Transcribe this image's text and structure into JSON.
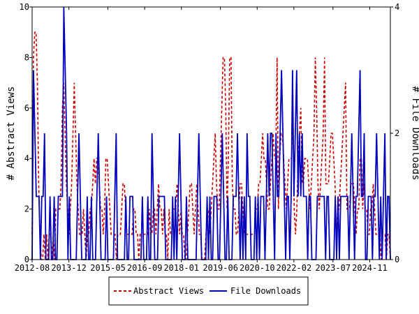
{
  "chart_data": {
    "type": "line",
    "x_ticks": [
      "2012-08",
      "2013-12",
      "2015-05",
      "2016-09",
      "2018-01",
      "2019-06",
      "2020-10",
      "2022-02",
      "2023-07",
      "2024-11"
    ],
    "x_range": [
      "2012-08",
      "2025-08"
    ],
    "y_left": {
      "label": "# Abstract Views",
      "range": [
        0,
        10
      ],
      "ticks": [
        "0",
        "2",
        "4",
        "6",
        "8",
        "10"
      ]
    },
    "y_right": {
      "label": "# File Downloads",
      "range": [
        0,
        4
      ],
      "ticks": [
        "0",
        "2",
        "4"
      ]
    },
    "grid": false,
    "legend_position": "bottom-center",
    "series": [
      {
        "name": "Abstract Views",
        "axis": "left",
        "color": "#cc0000",
        "style": "dashed",
        "values": [
          1,
          8,
          9,
          9,
          7,
          3,
          1,
          0,
          0,
          1,
          0,
          1,
          0,
          1,
          1,
          0,
          1,
          0,
          2,
          2,
          2,
          2,
          3,
          6,
          7,
          5,
          3,
          2,
          1,
          2,
          3,
          5,
          7,
          5,
          3,
          2,
          1,
          1,
          1,
          2,
          1,
          0,
          1,
          1,
          2,
          2,
          3,
          4,
          3,
          4,
          4,
          3,
          2,
          2,
          1,
          2,
          4,
          4,
          3,
          2,
          1,
          1,
          1,
          1,
          0,
          1,
          1,
          1,
          2,
          3,
          3,
          2,
          1,
          1,
          1,
          1,
          1,
          2,
          2,
          1,
          1,
          0,
          1,
          1,
          1,
          1,
          1,
          1,
          1,
          2,
          1,
          1,
          2,
          2,
          1,
          2,
          3,
          2,
          2,
          1,
          2,
          1,
          1,
          0,
          2,
          1,
          1,
          2,
          2,
          2,
          3,
          2,
          1,
          2,
          1,
          1,
          0,
          0,
          1,
          2,
          3,
          3,
          2,
          1,
          2,
          3,
          2,
          1,
          1,
          0,
          0,
          0,
          1,
          2,
          2,
          1,
          2,
          3,
          4,
          5,
          3,
          2,
          2,
          4,
          6,
          8,
          8,
          6,
          2,
          4,
          8,
          8,
          3,
          2,
          2,
          1,
          1,
          2,
          3,
          3,
          2,
          1,
          1,
          1,
          1,
          1,
          1,
          1,
          1,
          1,
          2,
          2,
          3,
          3,
          4,
          5,
          4,
          4,
          3,
          2,
          2,
          3,
          4,
          5,
          4,
          4,
          8,
          2,
          4,
          5,
          5,
          4,
          3,
          2,
          3,
          4,
          4,
          4,
          6,
          2,
          1,
          2,
          4,
          5,
          6,
          3,
          3,
          4,
          4,
          4,
          3,
          2,
          3,
          4,
          5,
          8,
          6,
          3,
          2,
          3,
          4,
          5,
          8,
          3,
          3,
          3,
          4,
          5,
          5,
          4,
          3,
          1,
          2,
          2,
          3,
          4,
          5,
          6,
          7,
          2,
          2,
          2,
          3,
          3,
          3,
          2,
          1,
          2,
          2,
          4,
          4,
          2,
          3,
          2,
          2,
          1,
          1,
          2,
          2,
          3,
          2,
          1,
          1,
          1,
          1,
          0,
          1,
          1,
          1,
          0,
          1,
          1,
          0
        ]
      },
      {
        "name": "File Downloads",
        "axis": "right",
        "color": "#0000bb",
        "style": "solid",
        "values": [
          0,
          3,
          2,
          1,
          1,
          1,
          0,
          1,
          1,
          2,
          0,
          0,
          0,
          1,
          0,
          0,
          1,
          0,
          0,
          1,
          1,
          1,
          1,
          4,
          3,
          2,
          0,
          1,
          0,
          0,
          0,
          0,
          0,
          1,
          2,
          1,
          0,
          0,
          0,
          0,
          1,
          0,
          0,
          1,
          0,
          0,
          0,
          1,
          2,
          1,
          0,
          0,
          0,
          0,
          1,
          0,
          0,
          0,
          0,
          0,
          1,
          2,
          0,
          0,
          0,
          0,
          0,
          0,
          1,
          0,
          0,
          1,
          1,
          1,
          0,
          0,
          0,
          0,
          0,
          0,
          1,
          0,
          0,
          0,
          1,
          0,
          0,
          2,
          1,
          0,
          0,
          0,
          1,
          1,
          1,
          1,
          1,
          0,
          0,
          0,
          0,
          0,
          1,
          0,
          1,
          0,
          1,
          2,
          1,
          0,
          0,
          0,
          1,
          0,
          0,
          0,
          0,
          0,
          0,
          0,
          1,
          2,
          1,
          0,
          0,
          0,
          0,
          1,
          0,
          1,
          0,
          0,
          1,
          1,
          1,
          0,
          0,
          1,
          2,
          1,
          0,
          0,
          1,
          0,
          0,
          0,
          1,
          1,
          1,
          2,
          1,
          0,
          1,
          0,
          1,
          0,
          2,
          1,
          1,
          0,
          0,
          0,
          1,
          0,
          1,
          0,
          1,
          1,
          1,
          0,
          1,
          2,
          1,
          2,
          2,
          1,
          0,
          2,
          1,
          1,
          2,
          3,
          2,
          1,
          0,
          1,
          1,
          0,
          1,
          3,
          1,
          2,
          3,
          1,
          2,
          1,
          2,
          1,
          1,
          1,
          0,
          1,
          1,
          0,
          0,
          0,
          0,
          1,
          1,
          1,
          1,
          1,
          1,
          0,
          1,
          1,
          0,
          0,
          0,
          0,
          1,
          0,
          1,
          0,
          1,
          1,
          1,
          1,
          1,
          1,
          0,
          1,
          2,
          1,
          0,
          1,
          1,
          2,
          3,
          1,
          1,
          2,
          0,
          0,
          1,
          1,
          1,
          0,
          1,
          1,
          2,
          1,
          0,
          1,
          0,
          1,
          2,
          0,
          1,
          1,
          0
        ]
      }
    ]
  }
}
